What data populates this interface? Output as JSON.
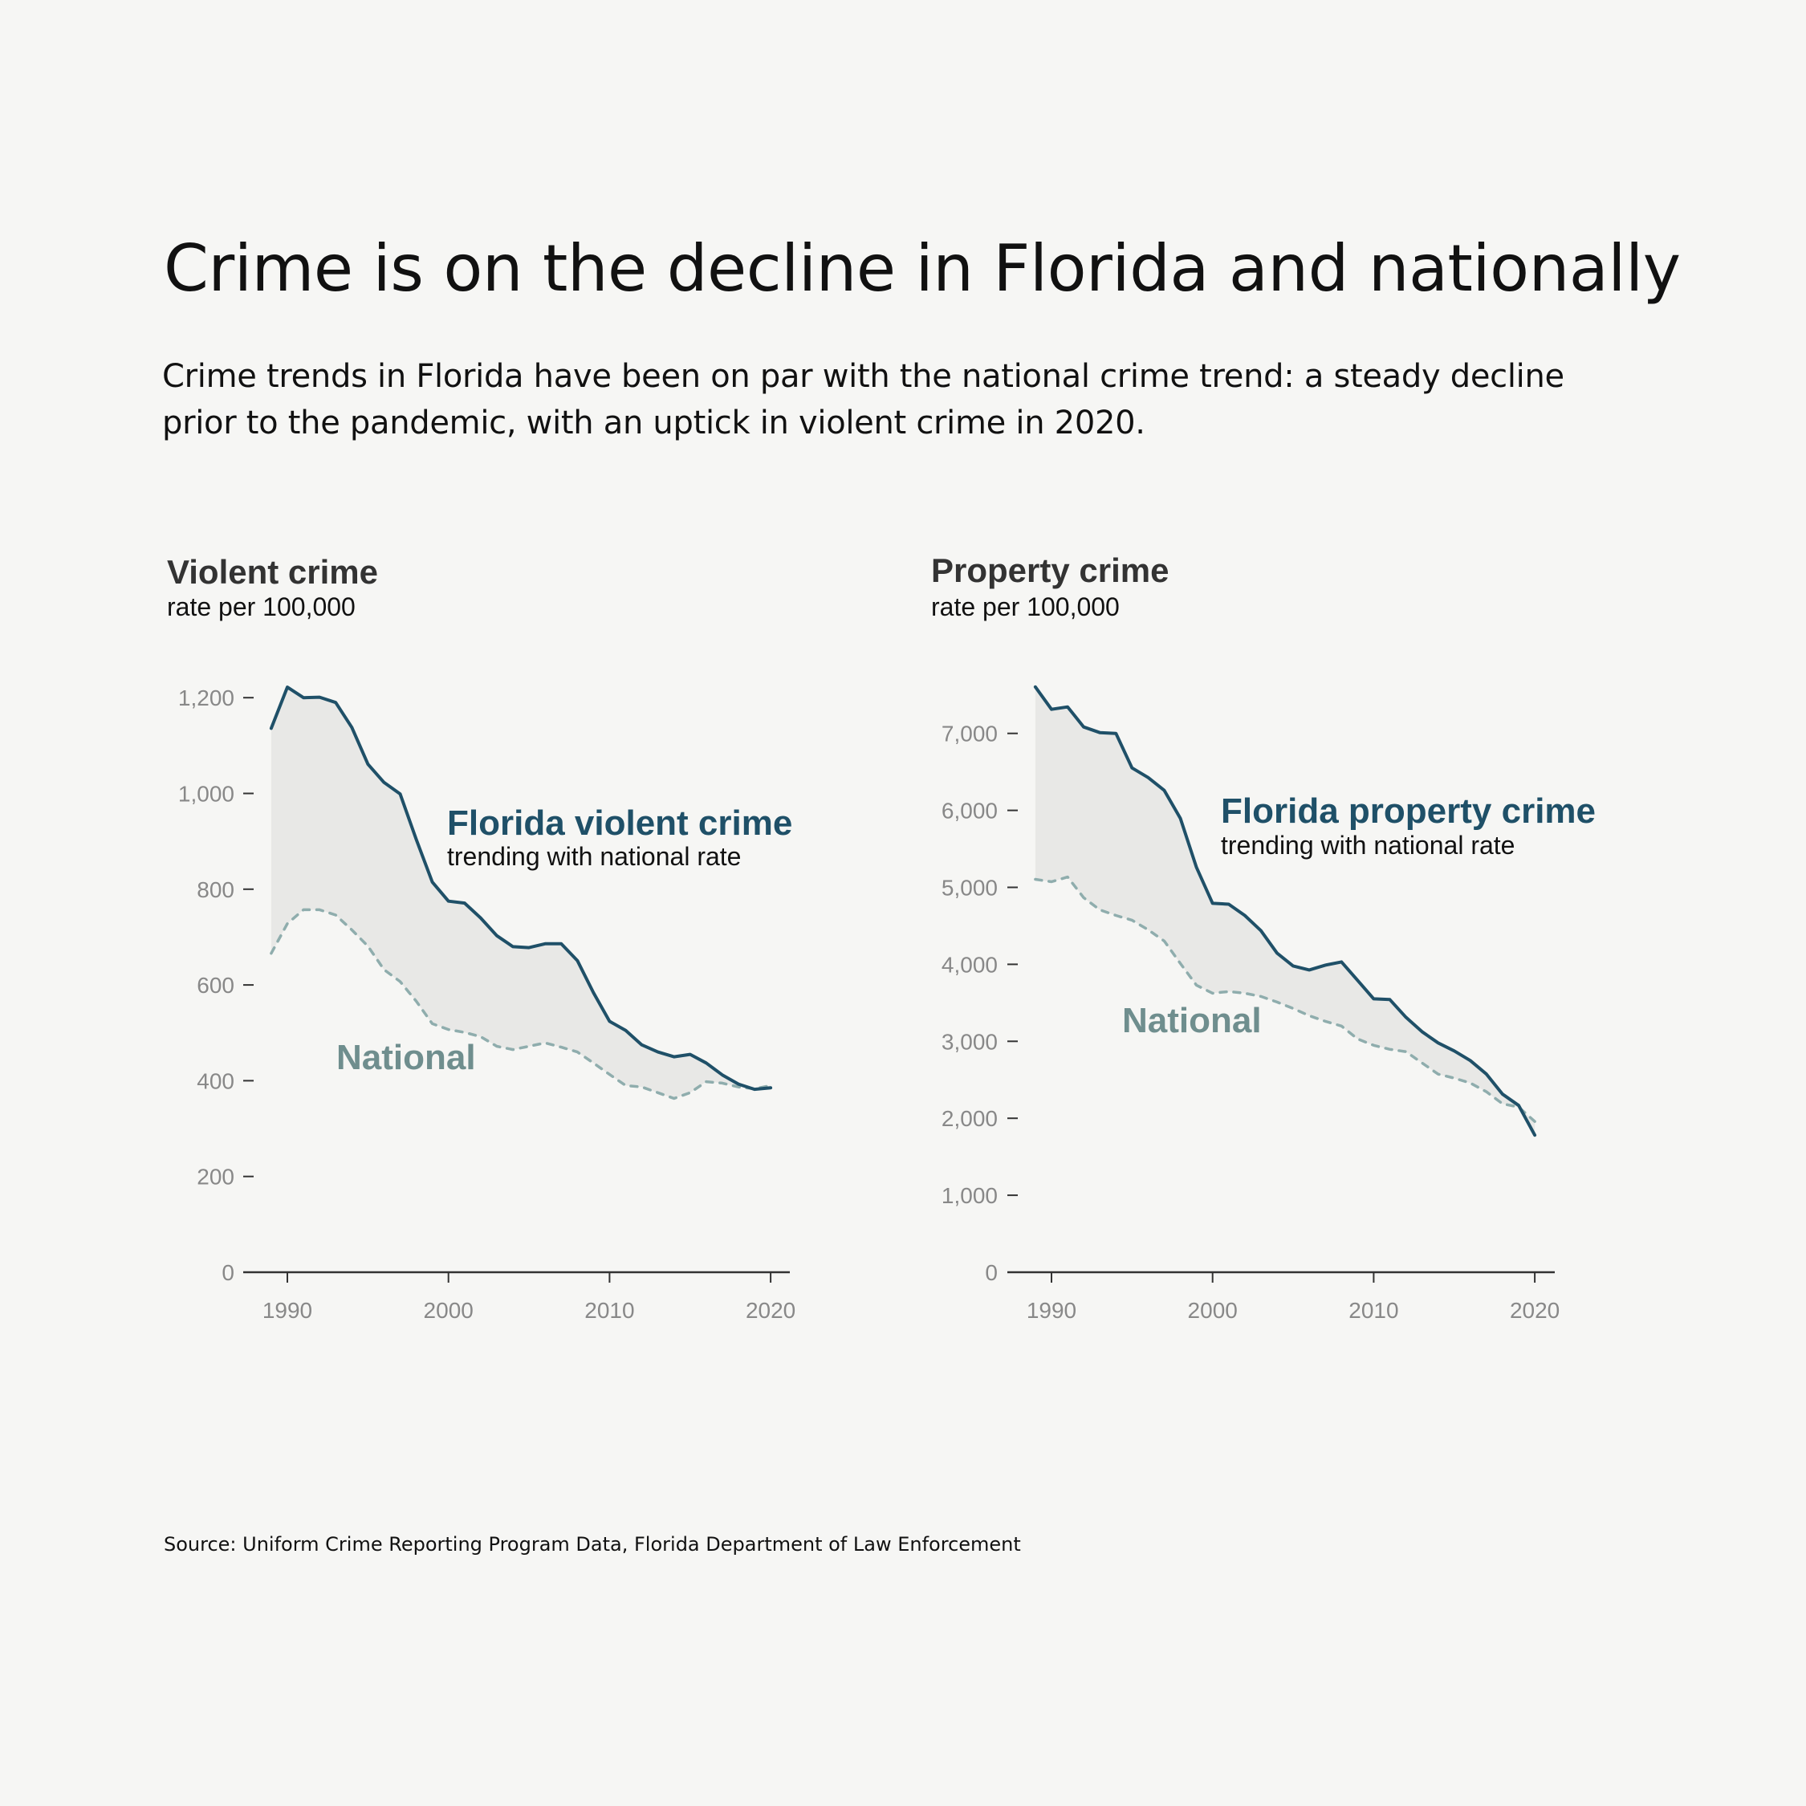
{
  "header": {
    "title": "Crime is on the decline in Florida and nationally",
    "subtitle": "Crime trends in Florida have been on par with the national crime trend: a steady decline prior to the pandemic, with an uptick in violent crime in 2020."
  },
  "footer": {
    "source": "Source: Uniform Crime Reporting Program Data, Florida Department of Law Enforcement"
  },
  "colors": {
    "florida": "#1f5068",
    "national_line": "#8fadad",
    "national_label": "#6f8e8e",
    "gap_fill": "#e8e8e6",
    "axis": "#333333",
    "tick_label": "#888888"
  },
  "chart_data": [
    {
      "type": "line",
      "title": "Violent crime",
      "ylabel": "rate per 100,000",
      "xlabel": "",
      "x": [
        1989,
        1990,
        1991,
        1992,
        1993,
        1994,
        1995,
        1996,
        1997,
        1998,
        1999,
        2000,
        2001,
        2002,
        2003,
        2004,
        2005,
        2006,
        2007,
        2008,
        2009,
        2010,
        2011,
        2012,
        2013,
        2014,
        2015,
        2016,
        2017,
        2018,
        2019,
        2020
      ],
      "series": [
        {
          "name": "Florida violent crime",
          "style": "solid",
          "values": [
            1136,
            1222,
            1200,
            1201,
            1190,
            1138,
            1061,
            1023,
            999,
            904,
            815,
            775,
            771,
            740,
            703,
            680,
            678,
            686,
            686,
            651,
            584,
            524,
            505,
            475,
            460,
            450,
            455,
            437,
            412,
            393,
            382,
            385
          ]
        },
        {
          "name": "National",
          "style": "dashed",
          "values": [
            666,
            728,
            757,
            757,
            746,
            715,
            681,
            632,
            607,
            566,
            519,
            507,
            501,
            492,
            472,
            465,
            472,
            479,
            470,
            460,
            437,
            413,
            390,
            387,
            375,
            363,
            375,
            398,
            395,
            387,
            383,
            390
          ]
        }
      ],
      "fill_between": true,
      "xticks": [
        "1990",
        "2000",
        "2010",
        "2020"
      ],
      "xtick_values": [
        1990,
        2000,
        2010,
        2020
      ],
      "yticks": [
        "0",
        "200",
        "400",
        "600",
        "800",
        "1,000",
        "1,200"
      ],
      "ytick_values": [
        0,
        200,
        400,
        600,
        800,
        1000,
        1200
      ],
      "xlim": [
        1986.8,
        2021.2
      ],
      "ylim": [
        0,
        1300
      ],
      "annotations": [
        {
          "label": "Florida violent crime",
          "sub": "trending with national rate",
          "series": "Florida violent crime"
        },
        {
          "label": "National",
          "series": "National"
        }
      ],
      "grid": false
    },
    {
      "type": "line",
      "title": "Property crime",
      "ylabel": "rate per 100,000",
      "xlabel": "",
      "x": [
        1989,
        1990,
        1991,
        1992,
        1993,
        1994,
        1995,
        1996,
        1997,
        1998,
        1999,
        2000,
        2001,
        2002,
        2003,
        2004,
        2005,
        2006,
        2007,
        2008,
        2009,
        2010,
        2011,
        2012,
        2013,
        2014,
        2015,
        2016,
        2017,
        2018,
        2019,
        2020
      ],
      "series": [
        {
          "name": "Florida property crime",
          "style": "solid",
          "values": [
            7604,
            7313,
            7344,
            7083,
            7010,
            7000,
            6552,
            6427,
            6260,
            5896,
            5260,
            4792,
            4781,
            4635,
            4438,
            4146,
            3979,
            3927,
            3990,
            4031,
            3792,
            3552,
            3542,
            3313,
            3125,
            2979,
            2875,
            2750,
            2573,
            2313,
            2167,
            1781
          ]
        },
        {
          "name": "National",
          "style": "dashed",
          "values": [
            5104,
            5073,
            5135,
            4865,
            4708,
            4635,
            4573,
            4448,
            4302,
            4010,
            3729,
            3625,
            3646,
            3625,
            3583,
            3510,
            3427,
            3333,
            3260,
            3198,
            3031,
            2948,
            2896,
            2865,
            2719,
            2573,
            2521,
            2458,
            2344,
            2188,
            2146,
            1958
          ]
        }
      ],
      "fill_between": true,
      "xticks": [
        "1990",
        "2000",
        "2010",
        "2020"
      ],
      "xtick_values": [
        1990,
        2000,
        2010,
        2020
      ],
      "yticks": [
        "0",
        "1,000",
        "2,000",
        "3,000",
        "4,000",
        "5,000",
        "6,000",
        "7,000"
      ],
      "ytick_values": [
        0,
        1000,
        2000,
        3000,
        4000,
        5000,
        6000,
        7000
      ],
      "xlim": [
        1986.8,
        2021.2
      ],
      "ylim": [
        0,
        8000
      ],
      "annotations": [
        {
          "label": "Florida property crime",
          "sub": "trending with national rate",
          "series": "Florida property crime"
        },
        {
          "label": "National",
          "series": "National"
        }
      ],
      "grid": false
    }
  ]
}
